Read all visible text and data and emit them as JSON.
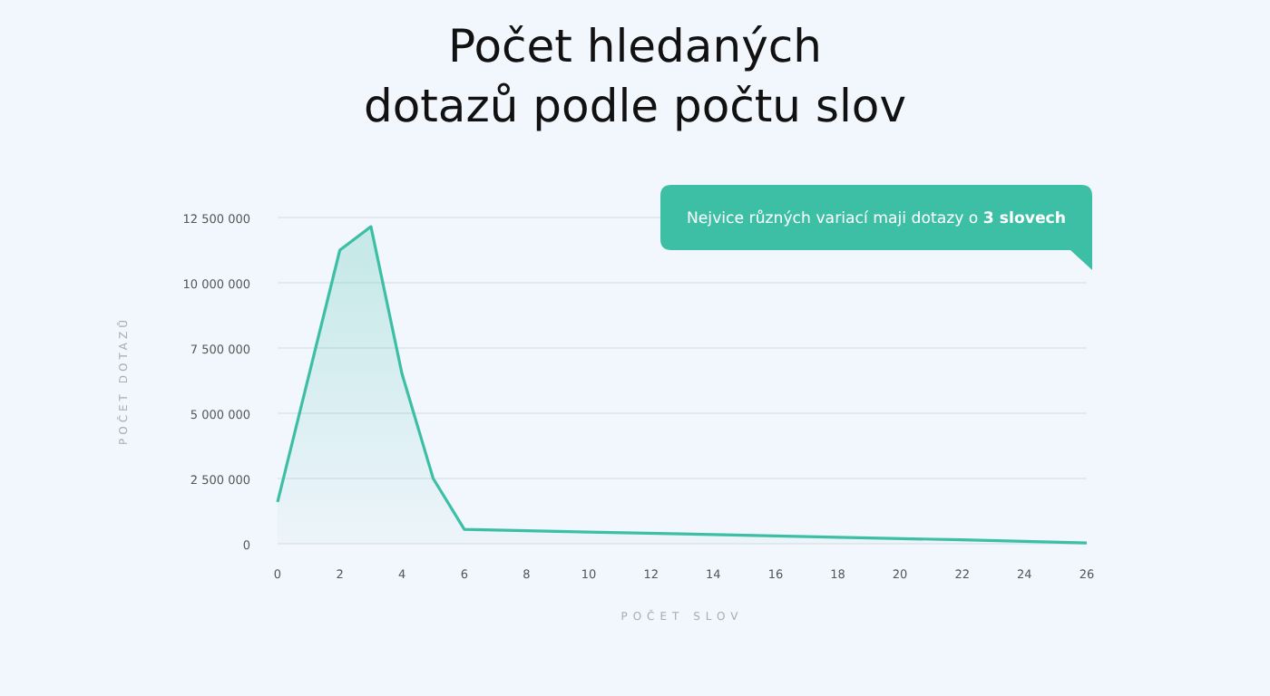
{
  "chart_data": {
    "type": "area",
    "title": "Počet hledaných\ndotazů podle počtu slov",
    "xlabel": "POČET SLOV",
    "ylabel": "POČET DOTAZŮ",
    "annotations": [
      "Nejvice různých variací maji dotazy o 3 slovech"
    ],
    "x": [
      0,
      2,
      3,
      4,
      5,
      6,
      10,
      14,
      18,
      22,
      26
    ],
    "series": [
      {
        "color": "#3dbfa6",
        "values": [
          1600000,
          11250000,
          12150000,
          6500000,
          2500000,
          550000,
          450000,
          350000,
          250000,
          150000,
          30000
        ]
      }
    ],
    "xlim": [
      0,
      26
    ],
    "xticks": [
      0,
      2,
      4,
      6,
      8,
      10,
      12,
      14,
      16,
      18,
      20,
      22,
      24,
      26
    ],
    "ylim": [
      0,
      12500000
    ],
    "yticks": [
      0,
      {
        "value": 2500000,
        "label": "2 500 000"
      },
      {
        "value": 5000000,
        "label": "5 000 000"
      },
      {
        "value": 7500000,
        "label": "7 500 000"
      },
      {
        "value": 10000000,
        "label": "10 000 000"
      },
      {
        "value": 12500000,
        "label": "12 500 000"
      }
    ],
    "grid": "y"
  }
}
